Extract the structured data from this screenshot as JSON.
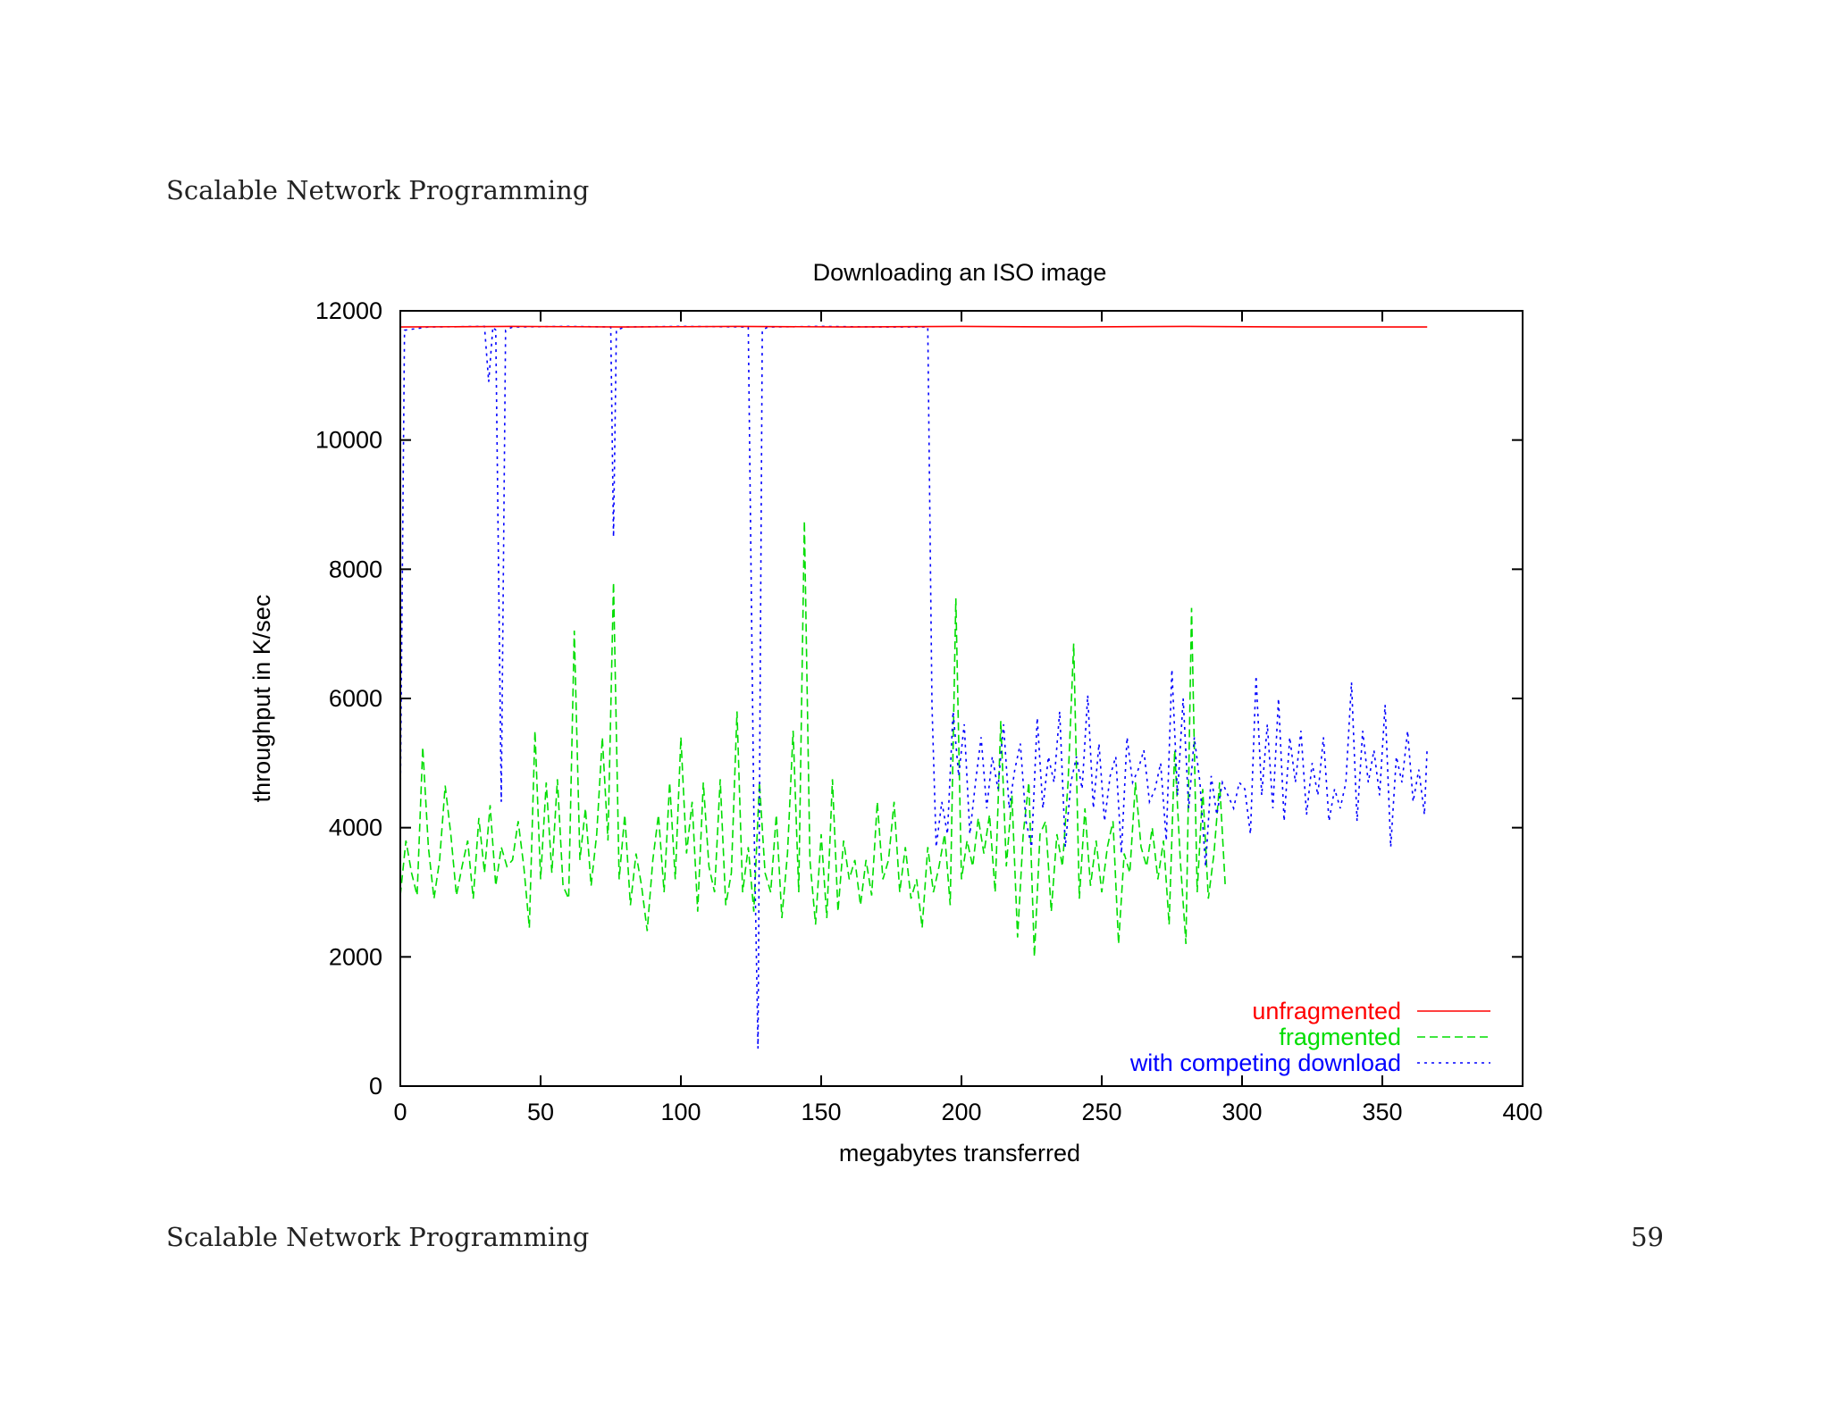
{
  "page": {
    "header": "Scalable Network Programming",
    "footer": "Scalable Network Programming",
    "page_number": "59"
  },
  "chart_data": {
    "type": "line",
    "title": "Downloading an ISO image",
    "xlabel": "megabytes transferred",
    "ylabel": "throughput in K/sec",
    "xlim": [
      0,
      400
    ],
    "ylim": [
      0,
      12000
    ],
    "xticks": [
      0,
      50,
      100,
      150,
      200,
      250,
      300,
      350,
      400
    ],
    "yticks": [
      0,
      2000,
      4000,
      6000,
      8000,
      10000,
      12000
    ],
    "grid": false,
    "legend_position": "bottom-right",
    "series": [
      {
        "name": "unfragmented",
        "color": "#ff0000",
        "dash": "solid",
        "points": [
          [
            0,
            11750
          ],
          [
            40,
            11760
          ],
          [
            80,
            11750
          ],
          [
            120,
            11760
          ],
          [
            160,
            11750
          ],
          [
            200,
            11760
          ],
          [
            240,
            11750
          ],
          [
            280,
            11760
          ],
          [
            320,
            11750
          ],
          [
            366,
            11750
          ]
        ]
      },
      {
        "name": "fragmented",
        "color": "#00dd00",
        "dash": "dashed",
        "points": [
          [
            0,
            2950
          ],
          [
            2,
            3800
          ],
          [
            4,
            3300
          ],
          [
            6,
            2950
          ],
          [
            8,
            5250
          ],
          [
            10,
            3700
          ],
          [
            12,
            2900
          ],
          [
            14,
            3500
          ],
          [
            16,
            4650
          ],
          [
            18,
            3900
          ],
          [
            20,
            2950
          ],
          [
            22,
            3400
          ],
          [
            24,
            3800
          ],
          [
            26,
            2900
          ],
          [
            28,
            4150
          ],
          [
            30,
            3300
          ],
          [
            32,
            4350
          ],
          [
            34,
            3100
          ],
          [
            36,
            3700
          ],
          [
            38,
            3400
          ],
          [
            40,
            3500
          ],
          [
            42,
            4100
          ],
          [
            44,
            3400
          ],
          [
            46,
            2450
          ],
          [
            48,
            5500
          ],
          [
            50,
            3200
          ],
          [
            52,
            4700
          ],
          [
            54,
            3300
          ],
          [
            56,
            4750
          ],
          [
            58,
            3100
          ],
          [
            60,
            2900
          ],
          [
            62,
            7050
          ],
          [
            64,
            3500
          ],
          [
            66,
            4300
          ],
          [
            68,
            3100
          ],
          [
            70,
            3900
          ],
          [
            72,
            5400
          ],
          [
            74,
            3800
          ],
          [
            76,
            7800
          ],
          [
            78,
            3200
          ],
          [
            80,
            4200
          ],
          [
            82,
            2800
          ],
          [
            84,
            3600
          ],
          [
            86,
            3100
          ],
          [
            88,
            2400
          ],
          [
            90,
            3500
          ],
          [
            92,
            4200
          ],
          [
            94,
            3000
          ],
          [
            96,
            4700
          ],
          [
            98,
            3200
          ],
          [
            100,
            5400
          ],
          [
            102,
            3600
          ],
          [
            104,
            4400
          ],
          [
            106,
            2700
          ],
          [
            108,
            4700
          ],
          [
            110,
            3400
          ],
          [
            112,
            3000
          ],
          [
            114,
            4750
          ],
          [
            116,
            2800
          ],
          [
            118,
            3300
          ],
          [
            120,
            5800
          ],
          [
            122,
            3000
          ],
          [
            124,
            3700
          ],
          [
            126,
            2700
          ],
          [
            128,
            4700
          ],
          [
            130,
            3300
          ],
          [
            132,
            3000
          ],
          [
            134,
            4200
          ],
          [
            136,
            2600
          ],
          [
            138,
            3600
          ],
          [
            140,
            5500
          ],
          [
            142,
            3000
          ],
          [
            144,
            8750
          ],
          [
            146,
            3500
          ],
          [
            148,
            2500
          ],
          [
            150,
            3900
          ],
          [
            152,
            2600
          ],
          [
            154,
            4750
          ],
          [
            156,
            2700
          ],
          [
            158,
            3800
          ],
          [
            160,
            3200
          ],
          [
            162,
            3500
          ],
          [
            164,
            2800
          ],
          [
            166,
            3500
          ],
          [
            168,
            2950
          ],
          [
            170,
            4400
          ],
          [
            172,
            3200
          ],
          [
            174,
            3500
          ],
          [
            176,
            4400
          ],
          [
            178,
            3000
          ],
          [
            180,
            3700
          ],
          [
            182,
            2900
          ],
          [
            184,
            3200
          ],
          [
            186,
            2450
          ],
          [
            188,
            3700
          ],
          [
            190,
            3000
          ],
          [
            192,
            3400
          ],
          [
            194,
            3900
          ],
          [
            196,
            2800
          ],
          [
            198,
            7550
          ],
          [
            200,
            3200
          ],
          [
            202,
            3800
          ],
          [
            204,
            3400
          ],
          [
            206,
            4150
          ],
          [
            208,
            3600
          ],
          [
            210,
            4200
          ],
          [
            212,
            3000
          ],
          [
            214,
            5650
          ],
          [
            216,
            3400
          ],
          [
            218,
            4500
          ],
          [
            220,
            2300
          ],
          [
            222,
            3900
          ],
          [
            224,
            4700
          ],
          [
            226,
            2000
          ],
          [
            228,
            3900
          ],
          [
            230,
            4100
          ],
          [
            232,
            2700
          ],
          [
            234,
            3900
          ],
          [
            236,
            3400
          ],
          [
            238,
            4700
          ],
          [
            240,
            6850
          ],
          [
            242,
            2900
          ],
          [
            244,
            4300
          ],
          [
            246,
            3100
          ],
          [
            248,
            3800
          ],
          [
            250,
            3000
          ],
          [
            252,
            3700
          ],
          [
            254,
            4100
          ],
          [
            256,
            2200
          ],
          [
            258,
            3600
          ],
          [
            260,
            3300
          ],
          [
            262,
            4700
          ],
          [
            264,
            3700
          ],
          [
            266,
            3400
          ],
          [
            268,
            4000
          ],
          [
            270,
            3200
          ],
          [
            272,
            3800
          ],
          [
            274,
            2500
          ],
          [
            276,
            5200
          ],
          [
            278,
            3500
          ],
          [
            280,
            2200
          ],
          [
            282,
            7400
          ],
          [
            284,
            3000
          ],
          [
            286,
            4600
          ],
          [
            288,
            2900
          ],
          [
            290,
            3600
          ],
          [
            292,
            4700
          ],
          [
            294,
            3100
          ]
        ]
      },
      {
        "name": "with competing download",
        "color": "#0000ff",
        "dash": "dotted",
        "points": [
          [
            0,
            4400
          ],
          [
            1.5,
            11700
          ],
          [
            10,
            11750
          ],
          [
            30,
            11760
          ],
          [
            31.5,
            10900
          ],
          [
            33,
            11750
          ],
          [
            34,
            11700
          ],
          [
            36,
            4400
          ],
          [
            37.5,
            11700
          ],
          [
            40,
            11750
          ],
          [
            60,
            11760
          ],
          [
            75,
            11750
          ],
          [
            76,
            8500
          ],
          [
            77,
            11700
          ],
          [
            80,
            11750
          ],
          [
            100,
            11760
          ],
          [
            124,
            11750
          ],
          [
            126,
            4300
          ],
          [
            127.5,
            580
          ],
          [
            129,
            11700
          ],
          [
            131,
            11750
          ],
          [
            150,
            11760
          ],
          [
            170,
            11750
          ],
          [
            188,
            11750
          ],
          [
            189.5,
            5900
          ],
          [
            191,
            3700
          ],
          [
            193,
            4400
          ],
          [
            195,
            3900
          ],
          [
            197,
            5800
          ],
          [
            199,
            4800
          ],
          [
            201,
            5600
          ],
          [
            203,
            3900
          ],
          [
            205,
            4700
          ],
          [
            207,
            5400
          ],
          [
            209,
            4300
          ],
          [
            211,
            5100
          ],
          [
            213,
            4600
          ],
          [
            215,
            5600
          ],
          [
            217,
            4300
          ],
          [
            219,
            4900
          ],
          [
            221,
            5300
          ],
          [
            223,
            4100
          ],
          [
            225,
            3700
          ],
          [
            227,
            5700
          ],
          [
            229,
            4300
          ],
          [
            231,
            5100
          ],
          [
            233,
            4700
          ],
          [
            235,
            5800
          ],
          [
            237,
            3700
          ],
          [
            239,
            4700
          ],
          [
            241,
            5100
          ],
          [
            243,
            4600
          ],
          [
            245,
            6050
          ],
          [
            247,
            4300
          ],
          [
            249,
            5300
          ],
          [
            251,
            4100
          ],
          [
            253,
            4800
          ],
          [
            255,
            5100
          ],
          [
            257,
            3600
          ],
          [
            259,
            5400
          ],
          [
            261,
            4700
          ],
          [
            263,
            4900
          ],
          [
            265,
            5200
          ],
          [
            267,
            4400
          ],
          [
            269,
            4600
          ],
          [
            271,
            5000
          ],
          [
            273,
            3800
          ],
          [
            275,
            6450
          ],
          [
            277,
            4500
          ],
          [
            279,
            6000
          ],
          [
            281,
            4300
          ],
          [
            283,
            5400
          ],
          [
            285,
            4700
          ],
          [
            287,
            3400
          ],
          [
            289,
            4800
          ],
          [
            291,
            4200
          ],
          [
            293,
            4700
          ],
          [
            295,
            4500
          ],
          [
            297,
            4300
          ],
          [
            299,
            4700
          ],
          [
            301,
            4600
          ],
          [
            303,
            3900
          ],
          [
            305,
            6350
          ],
          [
            307,
            4500
          ],
          [
            309,
            5600
          ],
          [
            311,
            4300
          ],
          [
            313,
            6000
          ],
          [
            315,
            4100
          ],
          [
            317,
            5400
          ],
          [
            319,
            4700
          ],
          [
            321,
            5500
          ],
          [
            323,
            4200
          ],
          [
            325,
            5000
          ],
          [
            327,
            4500
          ],
          [
            329,
            5400
          ],
          [
            331,
            4100
          ],
          [
            333,
            4600
          ],
          [
            335,
            4300
          ],
          [
            337,
            4700
          ],
          [
            339,
            6250
          ],
          [
            341,
            4100
          ],
          [
            343,
            5500
          ],
          [
            345,
            4700
          ],
          [
            347,
            5200
          ],
          [
            349,
            4500
          ],
          [
            351,
            5900
          ],
          [
            353,
            3700
          ],
          [
            355,
            5100
          ],
          [
            357,
            4700
          ],
          [
            359,
            5500
          ],
          [
            361,
            4400
          ],
          [
            363,
            4900
          ],
          [
            365,
            4200
          ],
          [
            366,
            5250
          ]
        ]
      }
    ]
  }
}
